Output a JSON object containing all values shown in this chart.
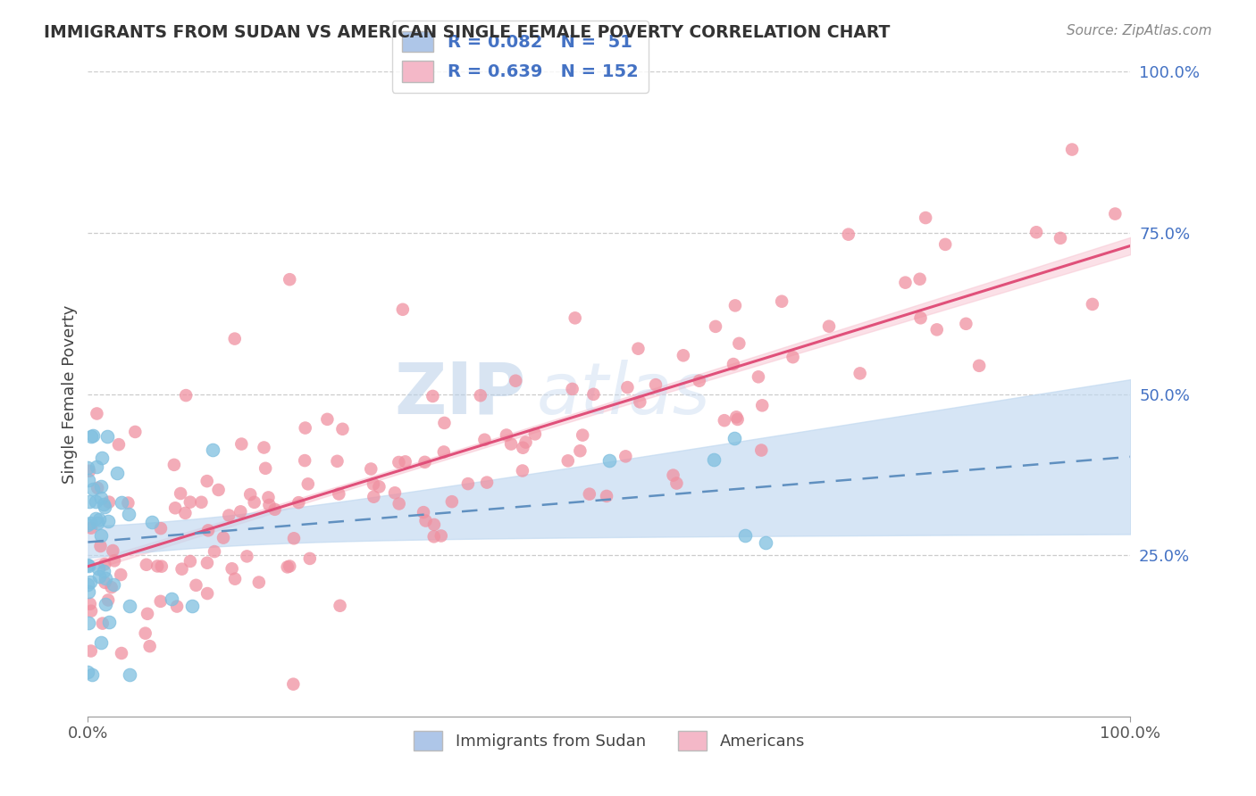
{
  "title": "IMMIGRANTS FROM SUDAN VS AMERICAN SINGLE FEMALE POVERTY CORRELATION CHART",
  "source": "Source: ZipAtlas.com",
  "ylabel": "Single Female Poverty",
  "legend_1_color": "#aec6e8",
  "legend_2_color": "#f4b8c8",
  "watermark_line1": "ZIP",
  "watermark_line2": "atlas",
  "sudan_color": "#7fbfdf",
  "americans_color": "#f090a0",
  "sudan_line_color": "#6090c0",
  "americans_line_color": "#e0507a",
  "conf_band_sudan": "#c0d8f0",
  "conf_band_americans": "#f8c8d4",
  "background_color": "#ffffff",
  "grid_color": "#cccccc",
  "xlim": [
    0.0,
    1.0
  ],
  "ylim": [
    0.0,
    1.0
  ],
  "ytick_positions": [
    0.25,
    0.5,
    0.75,
    1.0
  ],
  "ytick_labels": [
    "25.0%",
    "50.0%",
    "75.0%",
    "100.0%"
  ],
  "xtick_positions": [
    0.0,
    1.0
  ],
  "xtick_labels": [
    "0.0%",
    "100.0%"
  ],
  "r_sudan": 0.082,
  "n_sudan": 51,
  "r_americans": 0.639,
  "n_americans": 152,
  "legend_text_1": "R = 0.082   N =  51",
  "legend_text_2": "R = 0.639   N = 152",
  "bottom_legend_1": "Immigrants from Sudan",
  "bottom_legend_2": "Americans"
}
